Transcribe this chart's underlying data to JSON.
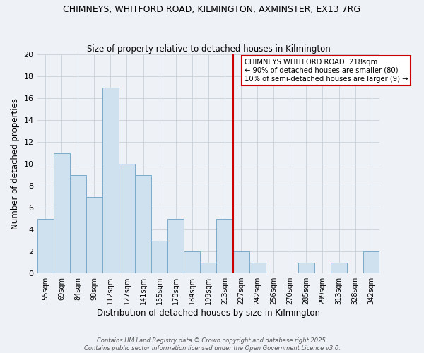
{
  "title": "CHIMNEYS, WHITFORD ROAD, KILMINGTON, AXMINSTER, EX13 7RG",
  "subtitle": "Size of property relative to detached houses in Kilmington",
  "xlabel": "Distribution of detached houses by size in Kilmington",
  "ylabel": "Number of detached properties",
  "bar_labels": [
    "55sqm",
    "69sqm",
    "84sqm",
    "98sqm",
    "112sqm",
    "127sqm",
    "141sqm",
    "155sqm",
    "170sqm",
    "184sqm",
    "199sqm",
    "213sqm",
    "227sqm",
    "242sqm",
    "256sqm",
    "270sqm",
    "285sqm",
    "299sqm",
    "313sqm",
    "328sqm",
    "342sqm"
  ],
  "bar_values": [
    5,
    11,
    9,
    7,
    17,
    10,
    9,
    3,
    5,
    2,
    1,
    5,
    2,
    1,
    0,
    0,
    1,
    0,
    1,
    0,
    2
  ],
  "bar_color": "#cfe0ee",
  "bar_edge_color": "#7baac8",
  "vline_x": 11.5,
  "vline_color": "#cc0000",
  "annotation_title": "CHIMNEYS WHITFORD ROAD: 218sqm",
  "annotation_line1": "← 90% of detached houses are smaller (80)",
  "annotation_line2": "10% of semi-detached houses are larger (9) →",
  "annotation_box_color": "#ffffff",
  "annotation_box_edge": "#cc0000",
  "grid_color": "#c8d0d8",
  "background_color": "#eef2f7",
  "footer1": "Contains HM Land Registry data © Crown copyright and database right 2025.",
  "footer2": "Contains public sector information licensed under the Open Government Licence v3.0.",
  "ylim": [
    0,
    20
  ],
  "yticks": [
    0,
    2,
    4,
    6,
    8,
    10,
    12,
    14,
    16,
    18,
    20
  ]
}
